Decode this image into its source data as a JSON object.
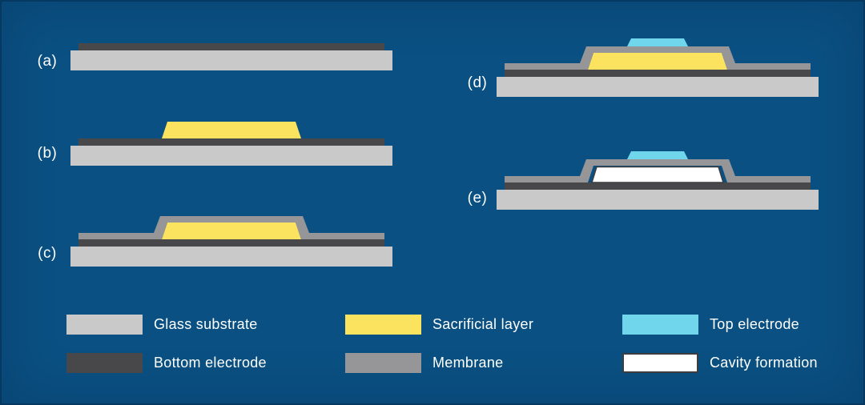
{
  "figure": {
    "steps": [
      {
        "label": "(a)",
        "layers": [
          "glass_substrate",
          "bottom_electrode"
        ]
      },
      {
        "label": "(b)",
        "layers": [
          "glass_substrate",
          "bottom_electrode",
          "sacrificial_layer"
        ]
      },
      {
        "label": "(c)",
        "layers": [
          "glass_substrate",
          "bottom_electrode",
          "sacrificial_layer",
          "membrane"
        ]
      },
      {
        "label": "(d)",
        "layers": [
          "glass_substrate",
          "bottom_electrode",
          "sacrificial_layer",
          "membrane",
          "top_electrode"
        ]
      },
      {
        "label": "(e)",
        "layers": [
          "glass_substrate",
          "bottom_electrode",
          "membrane",
          "cavity",
          "top_electrode"
        ]
      }
    ]
  },
  "legend": {
    "items": [
      {
        "key": "glass_substrate",
        "label": "Glass substrate",
        "color": "#c9c9ca"
      },
      {
        "key": "bottom_electrode",
        "label": "Bottom electrode",
        "color": "#48484a"
      },
      {
        "key": "sacrificial_layer",
        "label": "Sacrificial layer",
        "color": "#fbe25f"
      },
      {
        "key": "membrane",
        "label": "Membrane",
        "color": "#969698"
      },
      {
        "key": "top_electrode",
        "label": "Top electrode",
        "color": "#70d6ec"
      },
      {
        "key": "cavity",
        "label": "Cavity formation",
        "color": "#ffffff",
        "border": "#3d3d3f"
      }
    ]
  },
  "colors": {
    "background": "#0a5082"
  }
}
